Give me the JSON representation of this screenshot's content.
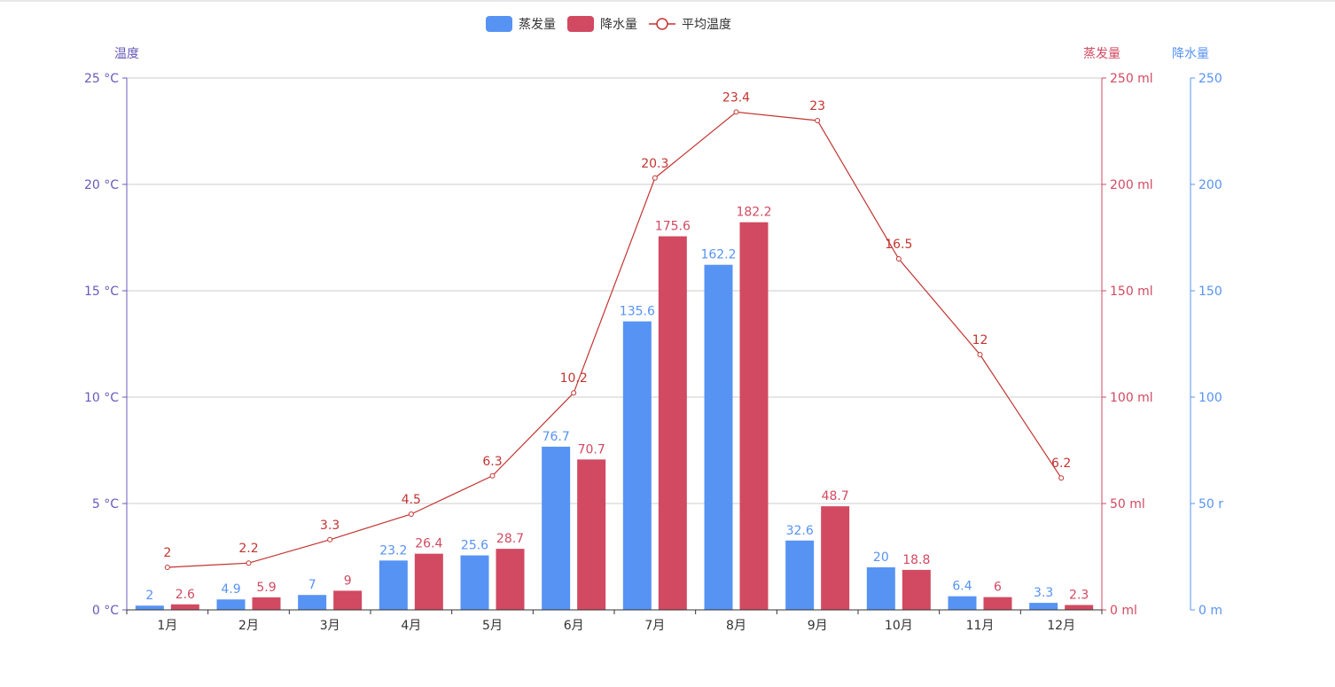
{
  "chart_data": {
    "type": "bar",
    "categories": [
      "1月",
      "2月",
      "3月",
      "4月",
      "5月",
      "6月",
      "7月",
      "8月",
      "9月",
      "10月",
      "11月",
      "12月"
    ],
    "series": [
      {
        "name": "蒸发量",
        "kind": "bar",
        "axis": "evaporation",
        "color": "#5793f3",
        "values": [
          2,
          4.9,
          7,
          23.2,
          25.6,
          76.7,
          135.6,
          162.2,
          32.6,
          20,
          6.4,
          3.3
        ]
      },
      {
        "name": "降水量",
        "kind": "bar",
        "axis": "evaporation",
        "color": "#d14a61",
        "values": [
          2.6,
          5.9,
          9,
          26.4,
          28.7,
          70.7,
          175.6,
          182.2,
          48.7,
          18.8,
          6,
          2.3
        ]
      },
      {
        "name": "平均温度",
        "kind": "line",
        "axis": "temperature",
        "color": "#c23531",
        "values": [
          2,
          2.2,
          3.3,
          4.5,
          6.3,
          10.2,
          20.3,
          23.4,
          23,
          16.5,
          12,
          6.2
        ]
      }
    ],
    "axes": {
      "temperature": {
        "name": "温度",
        "min": 0,
        "max": 25,
        "interval": 5,
        "unit": " °C",
        "color": "#675bba",
        "position": "left"
      },
      "evaporation": {
        "name": "蒸发量",
        "min": 0,
        "max": 250,
        "interval": 50,
        "unit": " ml",
        "color": "#d14a61",
        "position": "right"
      },
      "precipitation": {
        "name": "降水量",
        "min": 0,
        "max": 250,
        "interval": 50,
        "unit": "",
        "color": "#5793f3",
        "position": "right-offset",
        "tick_labels": [
          "0 m",
          "50 r",
          "100",
          "150",
          "200",
          "250"
        ]
      }
    },
    "grid": true,
    "legend_position": "top-center"
  }
}
